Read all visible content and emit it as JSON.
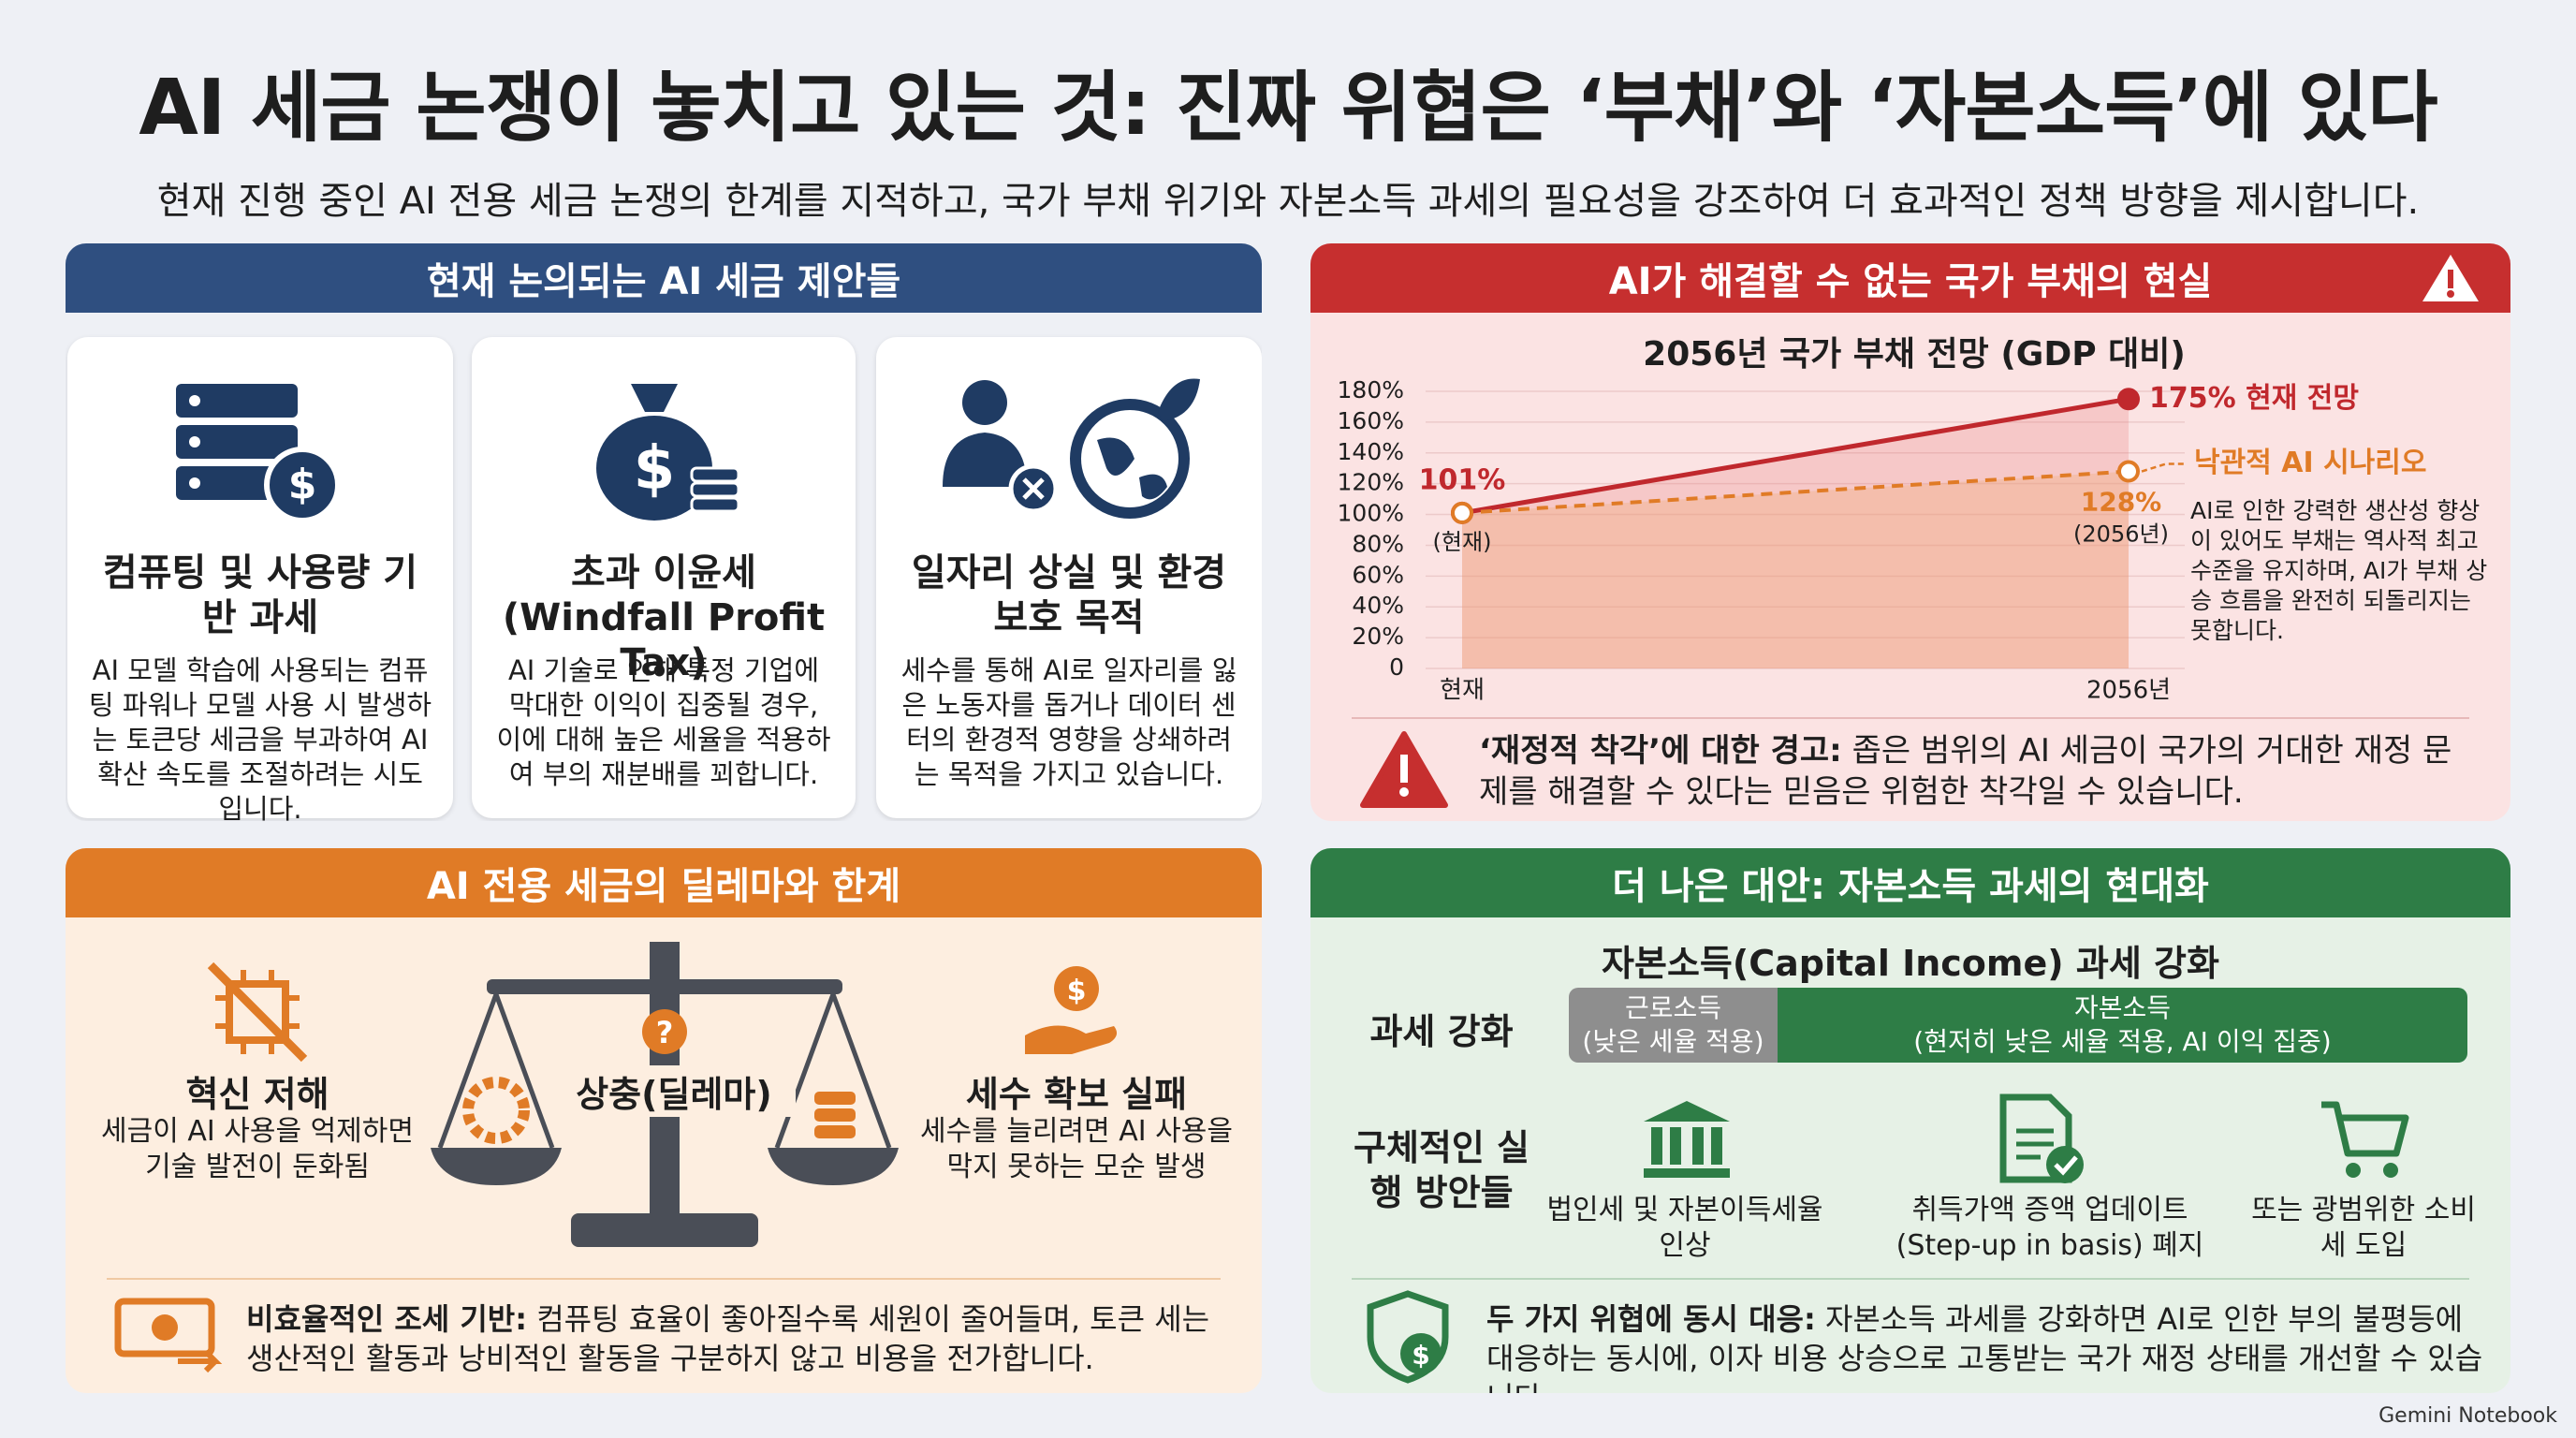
{
  "header": {
    "title": "AI 세금 논쟁이 놓치고 있는 것: 진짜 위협은 ‘부채’와 ‘자본소득’에 있다",
    "subtitle": "현재 진행 중인 AI 전용 세금 논쟁의 한계를 지적하고, 국가 부채 위기와 자본소득 과세의 필요성을 강조하여 더 효과적인 정책 방향을 제시합니다."
  },
  "proposals": {
    "heading": "현재 논의되는 AI 세금 제안들",
    "cards": [
      {
        "title": "컴퓨팅 및 사용량 기반 과세",
        "body": "AI 모델 학습에 사용되는 컴퓨팅 파워나 모델 사용 시 발생하는 토큰당 세금을 부과하여 AI 확산 속도를 조절하려는 시도입니다."
      },
      {
        "title": "초과 이윤세(Windfall Profit Tax)",
        "body": "AI 기술로 인해 특정 기업에 막대한 이익이 집중될 경우, 이에 대해 높은 세율을 적용하여 부의 재분배를 꾀합니다."
      },
      {
        "title": "일자리 상실 및 환경 보호 목적",
        "body": "세수를 통해 AI로 일자리를 잃은 노동자를 돕거나 데이터 센터의 환경적 영향을 상쇄하려는 목적을 가지고 있습니다."
      }
    ]
  },
  "debt": {
    "heading": "AI가 해결할 수 없는 국가 부채의 현실",
    "chart_data": {
      "type": "line",
      "title": "2056년 국가 부채 전망 (GDP 대비)",
      "categories": [
        "현재",
        "2056년"
      ],
      "series": [
        {
          "name": "현재 전망",
          "color": "#c0282d",
          "values": [
            101,
            175
          ],
          "value_labels": [
            "101%",
            "175%"
          ]
        },
        {
          "name": "낙관적 AI 시나리오",
          "color": "#e07b26",
          "values": [
            101,
            128
          ],
          "value_labels": [
            null,
            "128%"
          ]
        }
      ],
      "ylim": [
        0,
        180
      ],
      "yticks": [
        0,
        {
          "value": 20,
          "label": "20%"
        },
        {
          "value": 40,
          "label": "40%"
        },
        {
          "value": 60,
          "label": "60%"
        },
        {
          "value": 80,
          "label": "80%"
        },
        {
          "value": 100,
          "label": "100%"
        },
        {
          "value": 120,
          "label": "120%"
        },
        {
          "value": 140,
          "label": "140%"
        },
        {
          "value": 160,
          "label": "160%"
        },
        {
          "value": 180,
          "label": "180%"
        }
      ],
      "grid": true,
      "annotations": [
        "(현재)",
        "(2056년)",
        "AI로 인한 강력한 생산성 향상이 있어도 부채는 역사적 최고 수준을 유지하며, AI가 부채 상승 흐름을 완전히 되돌리지는 못합니다."
      ]
    },
    "warning": {
      "label": "‘재정적 착각’에 대한 경고:",
      "text": "좁은 범위의 AI 세금이 국가의 거대한 재정 문제를 해결할 수 있다는 믿음은 위험한 착각일 수 있습니다."
    }
  },
  "dilemma": {
    "heading": "AI 전용 세금의 딜레마와 한계",
    "items": [
      {
        "title": "혁신 저해",
        "body": "세금이 AI 사용을 억제하면 기술 발전이 둔화됨"
      },
      {
        "title": "세수 확보 실패",
        "body": "세수를 늘리려면 AI 사용을 막지 못하는 모순 발생"
      }
    ],
    "center": "상충(딜레마)",
    "note": {
      "label": "비효율적인 조세 기반:",
      "text": "컴퓨팅 효율이 좋아질수록 세원이 줄어들며, 토큰 세는 생산적인 활동과 낭비적인 활동을 구분하지 않고 비용을 전가합니다."
    }
  },
  "alternative": {
    "heading": "더 나은 대안: 자본소득 과세의 현대화",
    "subheading": "자본소득(Capital Income) 과세 강화",
    "strengthen": {
      "label": "과세 강화",
      "bars": [
        {
          "title": "근로소득",
          "detail": "(낮은 세율 적용)"
        },
        {
          "title": "자본소득",
          "detail": "(현저히 낮은 세율 적용, AI 이익 집중)"
        }
      ]
    },
    "measures": {
      "label": "구체적인 실행 방안들",
      "items": [
        "법인세 및 자본이득세율 인상",
        "취득가액 증액 업데이트 (Step-up in basis) 폐지",
        "또는 광범위한 소비세 도입"
      ]
    },
    "note": {
      "label": "두 가지 위협에 동시 대응:",
      "text": "자본소득 과세를 강화하면 AI로 인한 부의 불평등에 대응하는 동시에, 이자 비용 상승으로 고통받는 국가 재정 상태를 개선할 수 있습니다."
    }
  },
  "footer": "Gemini Notebook"
}
